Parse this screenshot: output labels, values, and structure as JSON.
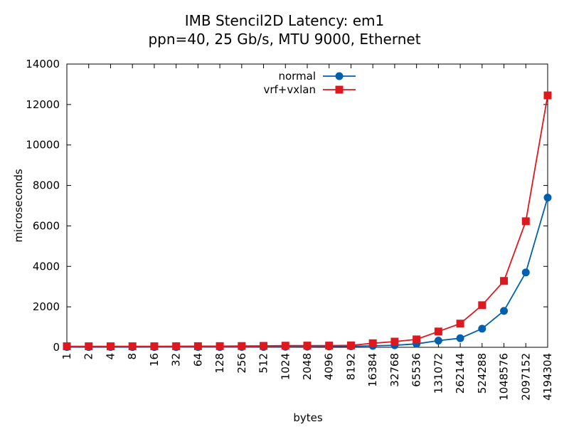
{
  "chart_data": {
    "type": "line",
    "title": "IMB Stencil2D Latency: em1",
    "subtitle": "ppn=40, 25 Gb/s, MTU 9000, Ethernet",
    "xlabel": "bytes",
    "ylabel": "microseconds",
    "categories": [
      "1",
      "2",
      "4",
      "8",
      "16",
      "32",
      "64",
      "128",
      "256",
      "512",
      "1024",
      "2048",
      "4096",
      "8192",
      "16384",
      "32768",
      "65536",
      "131072",
      "262144",
      "524288",
      "1048576",
      "2097152",
      "4194304"
    ],
    "ylim": [
      0,
      14000
    ],
    "yticks": [
      0,
      2000,
      4000,
      6000,
      8000,
      10000,
      12000,
      14000
    ],
    "grid": false,
    "legend_position": "top-center",
    "series": [
      {
        "name": "normal",
        "color": "#0060ad",
        "marker": "circle",
        "values": [
          12,
          12,
          12,
          12,
          13,
          13,
          14,
          15,
          17,
          20,
          25,
          32,
          40,
          50,
          70,
          100,
          170,
          330,
          450,
          920,
          1800,
          3700,
          7400
        ]
      },
      {
        "name": "vrf+vxlan",
        "color": "#dd181f",
        "marker": "square",
        "values": [
          50,
          50,
          50,
          50,
          50,
          52,
          55,
          58,
          62,
          70,
          80,
          85,
          85,
          95,
          200,
          280,
          390,
          780,
          1170,
          2080,
          3280,
          6230,
          12450
        ]
      }
    ]
  }
}
